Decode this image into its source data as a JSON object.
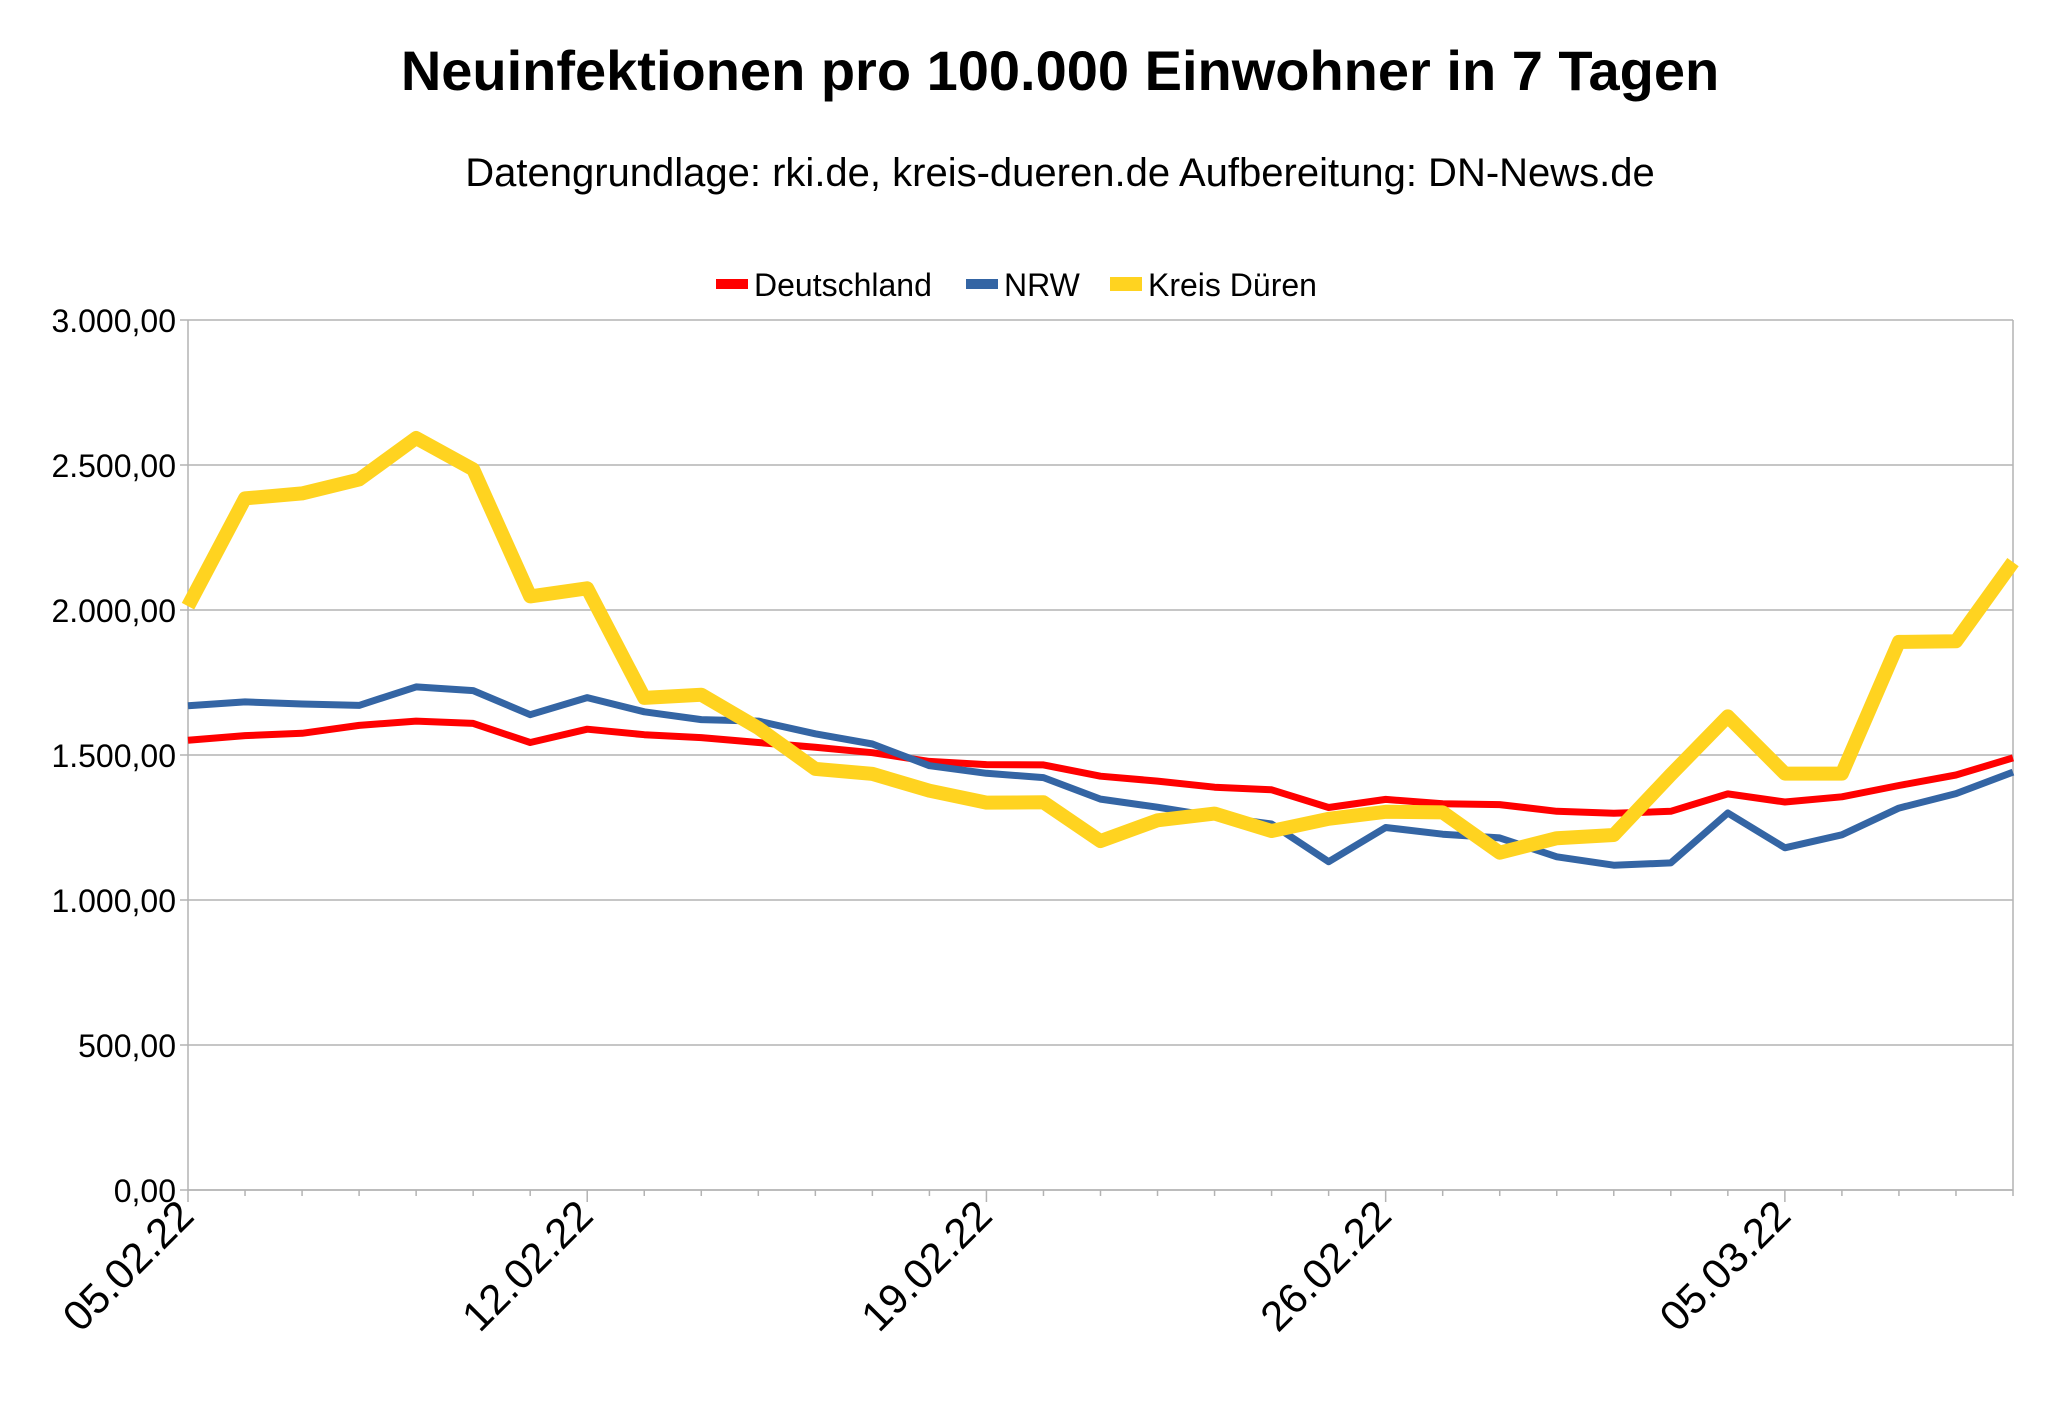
{
  "chart_data": {
    "type": "line",
    "title": "Neuinfektionen pro 100.000 Einwohner in 7 Tagen",
    "subtitle": "Datengrundlage: rki.de, kreis-dueren.de Aufbereitung: DN-News.de",
    "xlabel": "",
    "ylabel": "",
    "ylim": [
      0,
      3000
    ],
    "yticks": [
      0,
      500,
      1000,
      1500,
      2000,
      2500,
      3000
    ],
    "ytick_labels": [
      "0,00",
      "500,00",
      "1.000,00",
      "1.500,00",
      "2.000,00",
      "2.500,00",
      "3.000,00"
    ],
    "xtick_labels": [
      {
        "index": 0,
        "label": "05.02.22"
      },
      {
        "index": 7,
        "label": "12.02.22"
      },
      {
        "index": 14,
        "label": "19.02.22"
      },
      {
        "index": 21,
        "label": "26.02.22"
      },
      {
        "index": 28,
        "label": "05.03.22"
      }
    ],
    "grid": true,
    "legend_position": "top-center",
    "categories": [
      "05.02.22",
      "06.02.22",
      "07.02.22",
      "08.02.22",
      "09.02.22",
      "10.02.22",
      "11.02.22",
      "12.02.22",
      "13.02.22",
      "14.02.22",
      "15.02.22",
      "16.02.22",
      "17.02.22",
      "18.02.22",
      "19.02.22",
      "20.02.22",
      "21.02.22",
      "22.02.22",
      "23.02.22",
      "24.02.22",
      "25.02.22",
      "26.02.22",
      "27.02.22",
      "28.02.22",
      "01.03.22",
      "02.03.22",
      "03.03.22",
      "04.03.22",
      "05.03.22",
      "06.03.22",
      "07.03.22",
      "08.03.22",
      "09.03.22"
    ],
    "series": [
      {
        "name": "Deutschland",
        "color": "#ff0000",
        "values": [
          1551,
          1567,
          1575,
          1602,
          1617,
          1609,
          1543,
          1589,
          1570,
          1560,
          1543,
          1527,
          1508,
          1478,
          1467,
          1466,
          1427,
          1410,
          1389,
          1380,
          1319,
          1347,
          1332,
          1329,
          1306,
          1299,
          1306,
          1366,
          1338,
          1356,
          1395,
          1431,
          1490
        ]
      },
      {
        "name": "NRW",
        "color": "#3465a4",
        "values": [
          1670,
          1683,
          1676,
          1671,
          1735,
          1722,
          1639,
          1698,
          1649,
          1622,
          1617,
          1573,
          1538,
          1463,
          1437,
          1422,
          1348,
          1320,
          1288,
          1262,
          1132,
          1250,
          1227,
          1214,
          1149,
          1120,
          1128,
          1300,
          1180,
          1225,
          1317,
          1367,
          1441
        ]
      },
      {
        "name": "Kreis Düren",
        "color": "#ffd320",
        "values": [
          2013,
          2385,
          2402,
          2450,
          2593,
          2485,
          2047,
          2075,
          1697,
          1708,
          1593,
          1452,
          1435,
          1377,
          1336,
          1337,
          1203,
          1275,
          1298,
          1238,
          1280,
          1304,
          1302,
          1163,
          1213,
          1224,
          1432,
          1633,
          1436,
          1436,
          1890,
          1892,
          2165
        ]
      }
    ]
  }
}
